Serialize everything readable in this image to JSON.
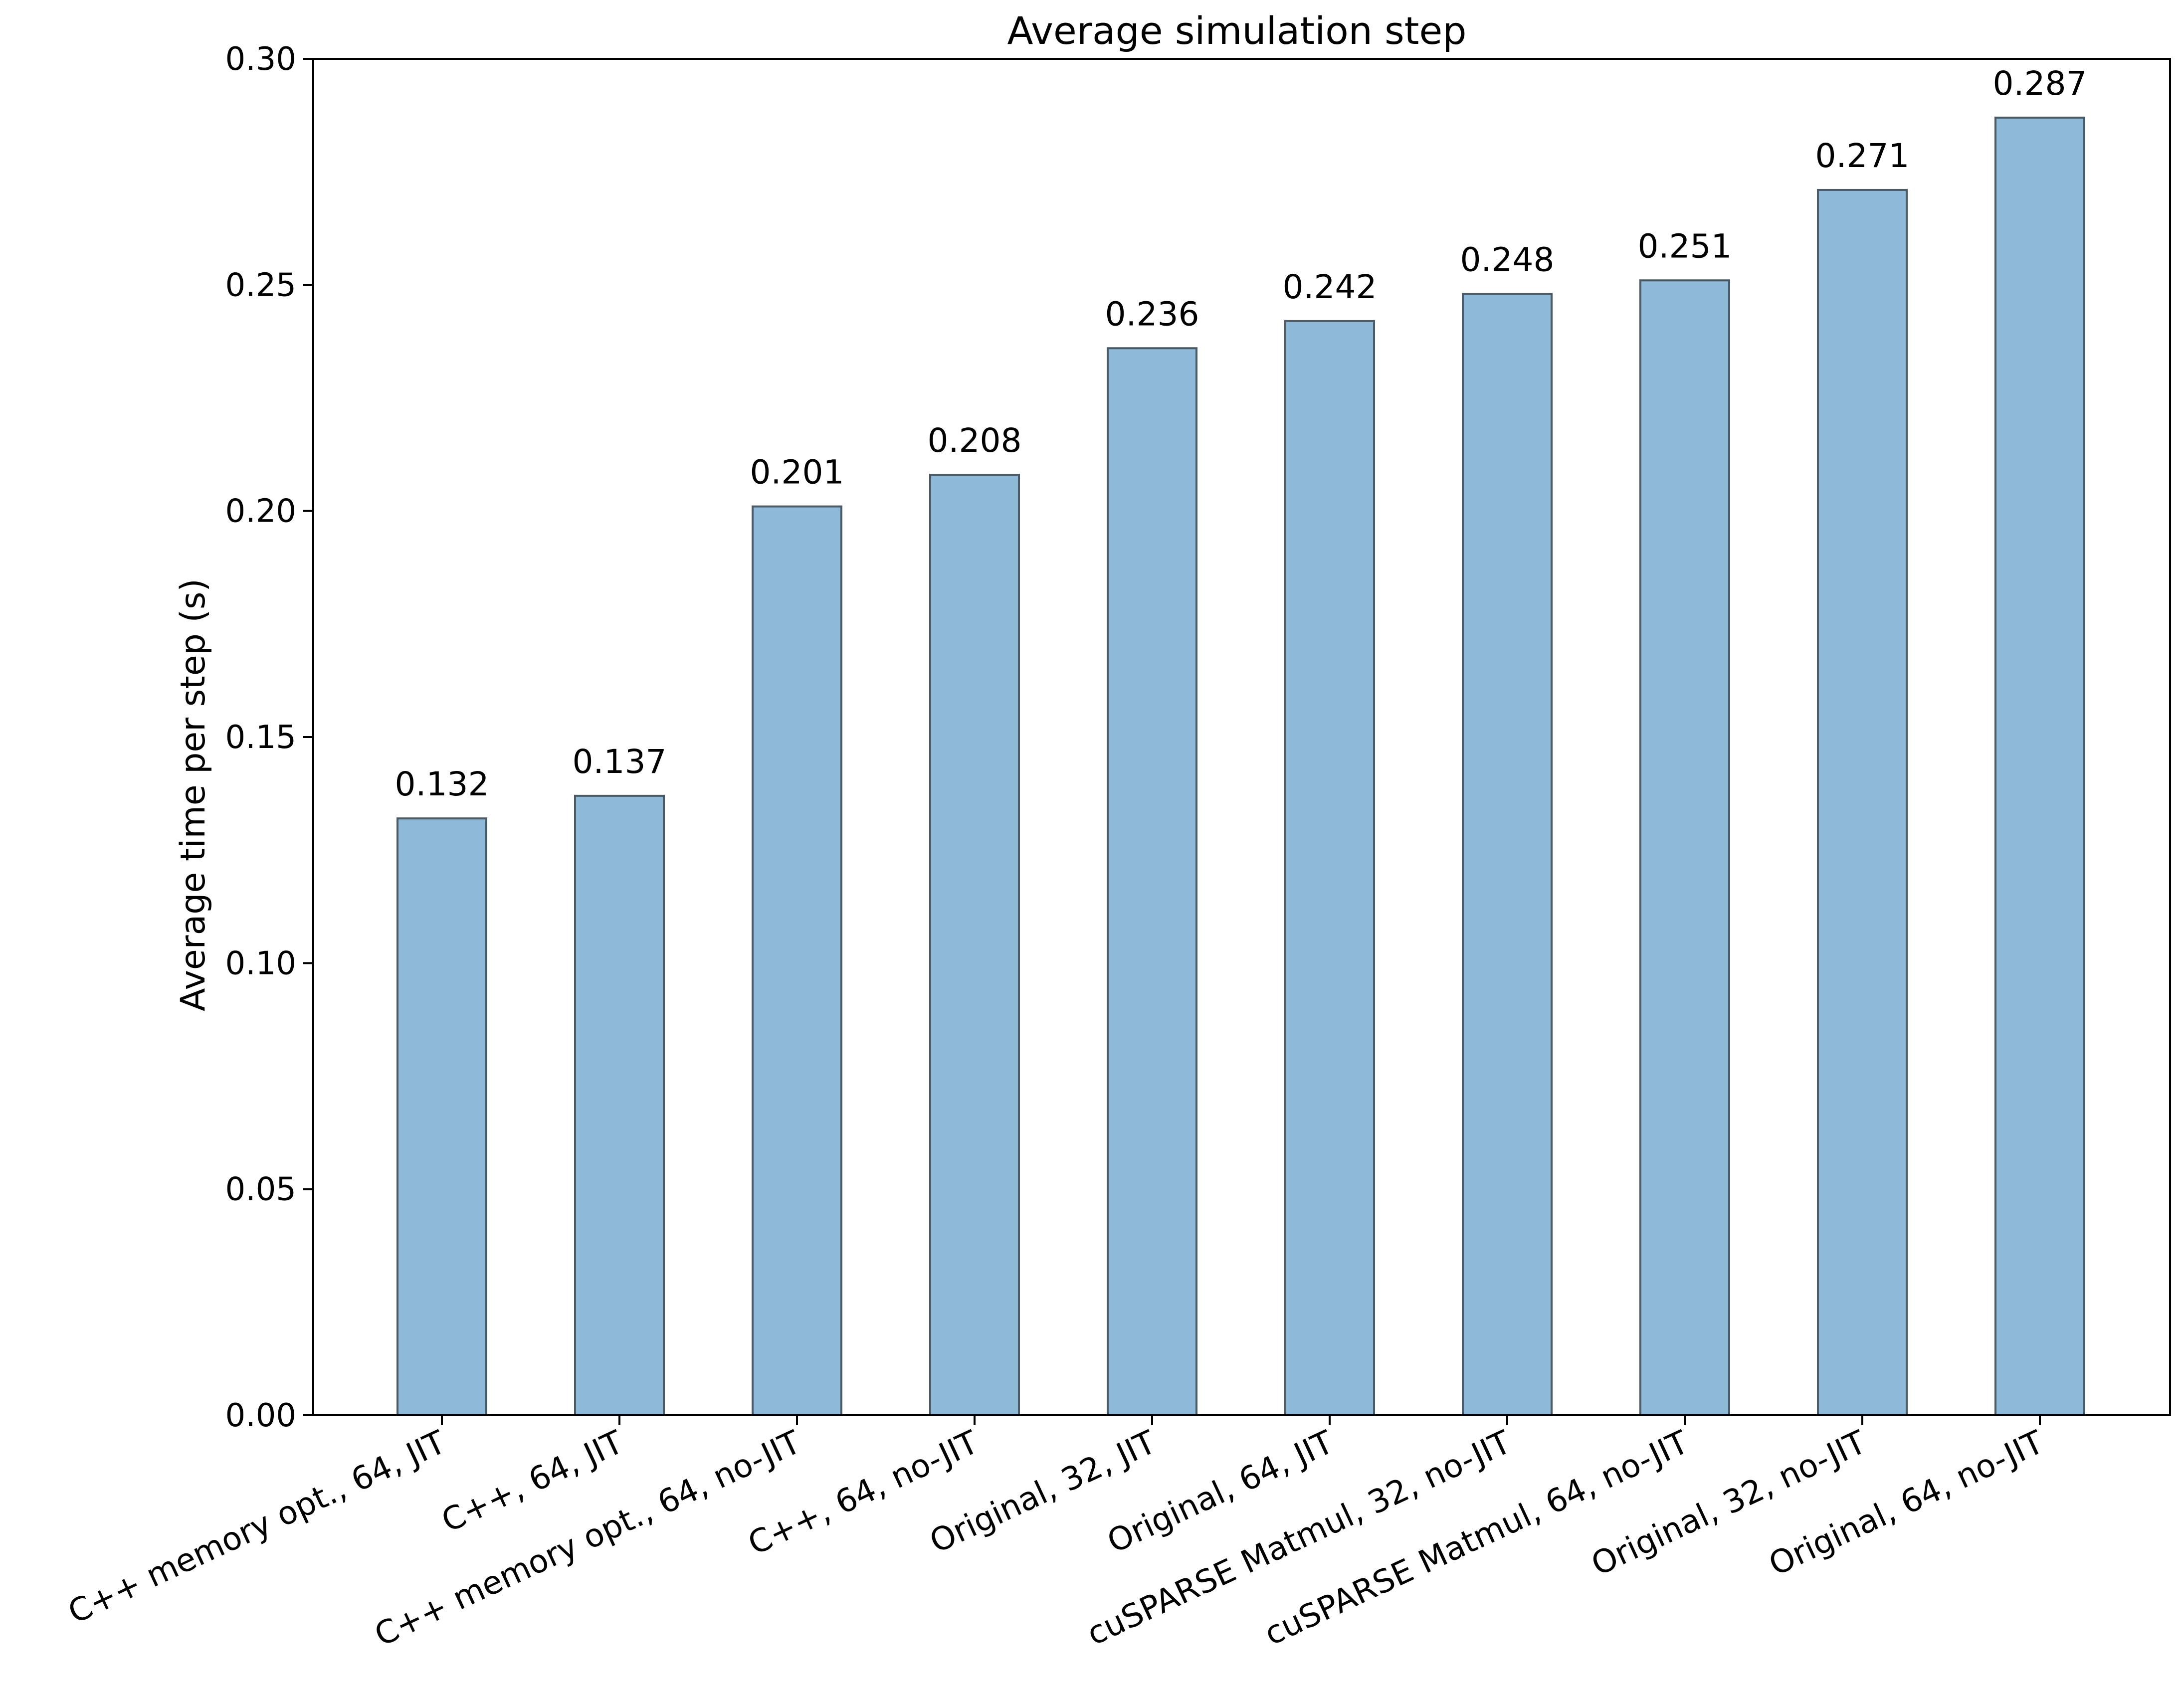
{
  "chart_data": {
    "type": "bar",
    "title": "Average simulation step",
    "xlabel": "",
    "ylabel": "Average time per step (s)",
    "ylim": [
      0,
      0.3
    ],
    "yticks": [
      "0.00",
      "0.05",
      "0.10",
      "0.15",
      "0.20",
      "0.25",
      "0.30"
    ],
    "grid": false,
    "legend": "none",
    "categories": [
      "C++ memory opt., 64, JIT",
      "C++, 64, JIT",
      "C++ memory opt., 64, no-JIT",
      "C++, 64, no-JIT",
      "Original, 32, JIT",
      "Original, 64, JIT",
      "cuSPARSE Matmul, 32, no-JIT",
      "cuSPARSE Matmul, 64, no-JIT",
      "Original, 32, no-JIT",
      "Original, 64, no-JIT"
    ],
    "values": [
      0.132,
      0.137,
      0.201,
      0.208,
      0.236,
      0.242,
      0.248,
      0.251,
      0.271,
      0.287
    ],
    "data_labels": [
      "0.132",
      "0.137",
      "0.201",
      "0.208",
      "0.236",
      "0.242",
      "0.248",
      "0.251",
      "0.271",
      "0.287"
    ],
    "colors": {
      "bar_fill": "#8fb9d9",
      "bar_edge": "#4a5a66"
    }
  }
}
